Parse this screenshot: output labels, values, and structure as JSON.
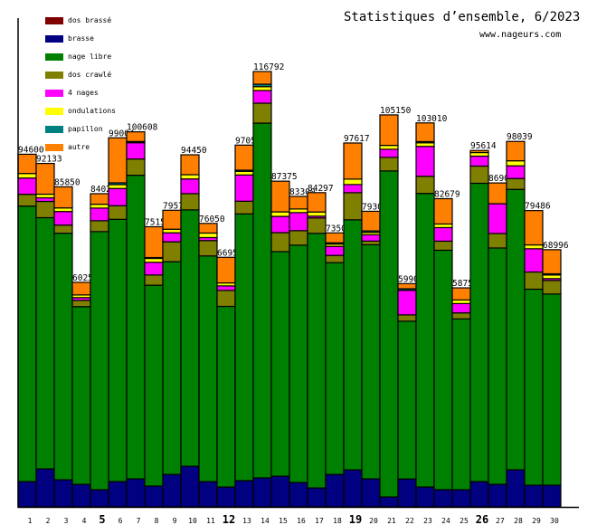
{
  "chart_data": {
    "type": "bar",
    "stacked": true,
    "title": "Statistiques d’ensemble, 6/2023",
    "subtitle": "www.nageurs.com",
    "xlabel": "",
    "ylabel": "",
    "grid": false,
    "legend_position": "top-left",
    "categories": [
      "1",
      "2",
      "3",
      "4",
      "5",
      "6",
      "7",
      "8",
      "9",
      "10",
      "11",
      "12",
      "13",
      "14",
      "15",
      "16",
      "17",
      "18",
      "19",
      "20",
      "21",
      "22",
      "23",
      "24",
      "25",
      "26",
      "27",
      "28",
      "29",
      "30"
    ],
    "highlighted_categories": [
      "5",
      "12",
      "19",
      "26"
    ],
    "totals": [
      94600,
      92133,
      85850,
      60250,
      84020,
      99004,
      100608,
      75150,
      79570,
      94450,
      76050,
      66950,
      97050,
      116792,
      87375,
      83300,
      84297,
      73500,
      97617,
      79300,
      105150,
      59900,
      103010,
      82679,
      58750,
      95614,
      86900,
      98039,
      79486,
      68996
    ],
    "stack_order": [
      "brasse",
      "nage libre",
      "dos crawlé",
      "4 nages",
      "ondulations",
      "papillon",
      "dos brassé",
      "autre"
    ],
    "series": [
      {
        "name": "dos brassé",
        "color": "#800000",
        "values": [
          0,
          0,
          0,
          0,
          0,
          0,
          0,
          0,
          0,
          0,
          0,
          0,
          0,
          0,
          0,
          0,
          0,
          0,
          0,
          0,
          0,
          0,
          0,
          0,
          0,
          0,
          0,
          0,
          0,
          0
        ]
      },
      {
        "name": "brasse",
        "color": "#000080",
        "values": [
          6800,
          10210,
          7290,
          6080,
          4620,
          6800,
          7530,
          5590,
          8750,
          10940,
          6800,
          5350,
          7050,
          7780,
          8260,
          6560,
          5100,
          8750,
          9960,
          7530,
          2670,
          7530,
          5350,
          4620,
          4620,
          6800,
          6080,
          9960,
          5830,
          5830
        ]
      },
      {
        "name": "nage libre",
        "color": "#008000",
        "values": [
          74040,
          67480,
          66270,
          47870,
          69430,
          70400,
          81580,
          53870,
          57280,
          68940,
          60680,
          48670,
          71610,
          95180,
          60430,
          63840,
          68450,
          57030,
          67240,
          62860,
          87650,
          42530,
          78900,
          64320,
          46000,
          80120,
          63590,
          75260,
          52730,
          51440
        ]
      },
      {
        "name": "dos crawlé",
        "color": "#808000",
        "values": [
          3160,
          4370,
          2190,
          1700,
          2920,
          3650,
          4370,
          2750,
          5350,
          4370,
          4130,
          4300,
          3400,
          5350,
          5100,
          3890,
          4130,
          1940,
          7290,
          970,
          3650,
          1700,
          4620,
          2430,
          1630,
          4620,
          3890,
          2920,
          4620,
          3650
        ]
      },
      {
        "name": "4 nages",
        "color": "#ff00ff",
        "values": [
          4370,
          970,
          3650,
          730,
          3400,
          4620,
          4370,
          3400,
          2430,
          3960,
          800,
          1220,
          7050,
          3400,
          4370,
          4860,
          490,
          2430,
          2190,
          1700,
          2190,
          6630,
          8020,
          3650,
          2500,
          2670,
          8020,
          3400,
          6250,
          490
        ]
      },
      {
        "name": "ondulations",
        "color": "#ffff00",
        "values": [
          1220,
          970,
          970,
          730,
          1040,
          1040,
          0,
          1040,
          970,
          1140,
          1220,
          800,
          970,
          1040,
          1220,
          970,
          1120,
          630,
          1460,
          630,
          1040,
          0,
          970,
          970,
          970,
          970,
          0,
          1360,
          1040,
          970
        ]
      },
      {
        "name": "papillon",
        "color": "#008080",
        "values": [
          0,
          0,
          0,
          0,
          0,
          490,
          320,
          240,
          0,
          0,
          0,
          0,
          320,
          660,
          0,
          0,
          0,
          340,
          0,
          410,
          0,
          410,
          320,
          0,
          0,
          0,
          0,
          0,
          0,
          320
        ]
      },
      {
        "name": "autre",
        "color": "#ff8000",
        "values": [
          5180,
          8260,
          5660,
          3400,
          2840,
          12080,
          2600,
          8260,
          5100,
          5350,
          2600,
          6900,
          6730,
          3400,
          8260,
          3400,
          5200,
          2670,
          9720,
          5270,
          8190,
          1390,
          5030,
          6800,
          3260,
          560,
          5590,
          5200,
          9230,
          6490
        ]
      }
    ]
  }
}
